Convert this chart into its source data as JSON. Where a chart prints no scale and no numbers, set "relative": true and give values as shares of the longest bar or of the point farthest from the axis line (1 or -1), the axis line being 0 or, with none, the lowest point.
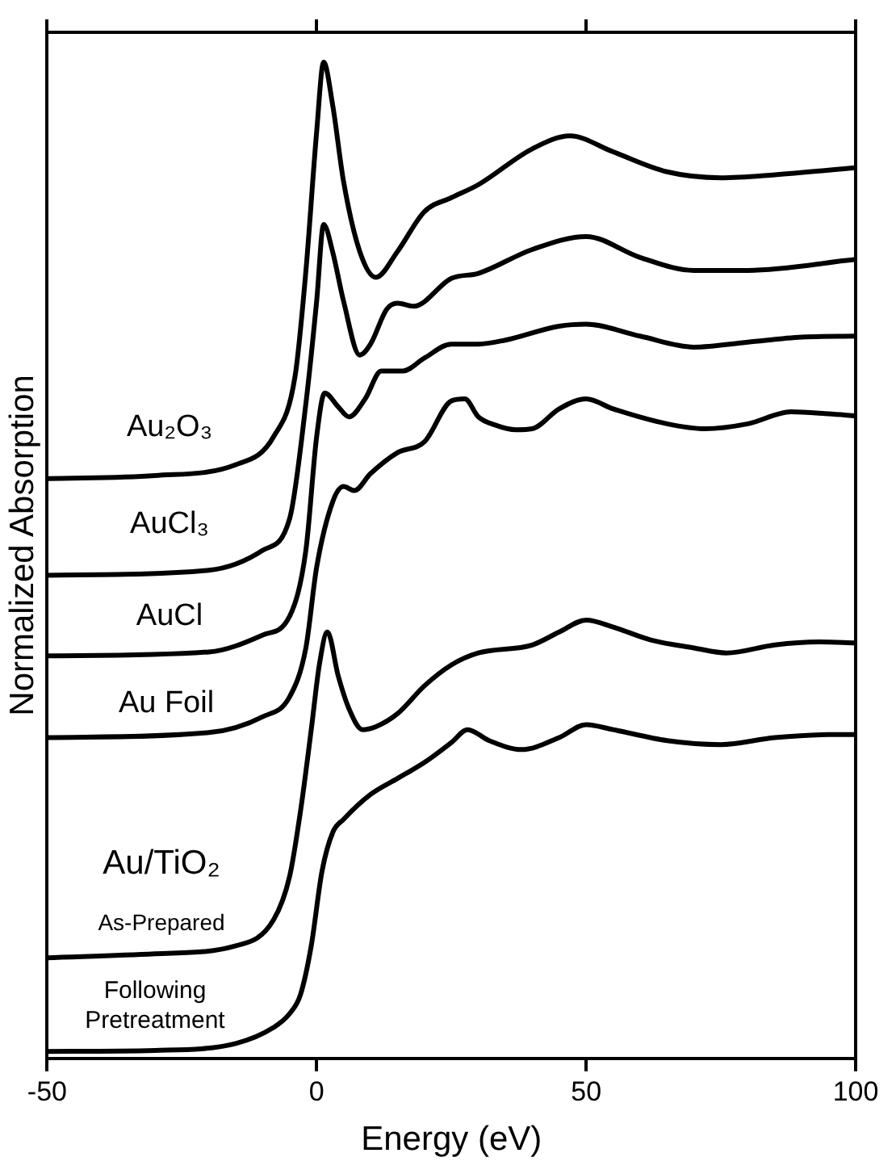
{
  "chart_data": {
    "type": "line",
    "xlabel": "Energy (eV)",
    "ylabel": "Normalized Absorption",
    "relative": true,
    "xlim": [
      -50,
      100
    ],
    "xticks": [
      -50,
      0,
      50,
      100
    ],
    "tick_labels": "x",
    "grid": false,
    "legend": false,
    "marker": "none",
    "line_style": "solid",
    "series": [
      {
        "color": "#000000",
        "x": [
          -50,
          -30,
          -15,
          -8,
          -4,
          -2,
          0,
          1.3,
          3,
          5,
          8,
          11,
          15,
          20,
          25,
          30,
          40,
          47,
          55,
          65,
          75,
          85,
          100
        ],
        "values": [
          0.582,
          0.585,
          0.596,
          0.624,
          0.685,
          0.79,
          0.93,
          1.0,
          0.956,
          0.88,
          0.81,
          0.784,
          0.81,
          0.85,
          0.864,
          0.877,
          0.913,
          0.926,
          0.91,
          0.89,
          0.884,
          0.887,
          0.894
        ]
      },
      {
        "color": "#000000",
        "x": [
          -50,
          -20,
          -10,
          -5,
          -2,
          0,
          1.3,
          3,
          5,
          8,
          10,
          13,
          15,
          18,
          25,
          30,
          40,
          50,
          60,
          70,
          80,
          100
        ],
        "values": [
          0.485,
          0.49,
          0.51,
          0.542,
          0.657,
          0.76,
          0.837,
          0.809,
          0.76,
          0.706,
          0.717,
          0.752,
          0.758,
          0.755,
          0.783,
          0.788,
          0.812,
          0.825,
          0.804,
          0.791,
          0.791,
          0.802
        ]
      },
      {
        "color": "#000000",
        "x": [
          -50,
          -20,
          -10,
          -5,
          -2,
          0,
          1.5,
          4,
          6,
          9,
          12,
          16,
          20,
          25,
          30,
          35,
          45,
          50,
          60,
          70,
          80,
          90,
          100
        ],
        "values": [
          0.404,
          0.408,
          0.425,
          0.444,
          0.51,
          0.624,
          0.668,
          0.654,
          0.644,
          0.662,
          0.69,
          0.69,
          0.703,
          0.717,
          0.717,
          0.721,
          0.735,
          0.737,
          0.725,
          0.714,
          0.719,
          0.724,
          0.725
        ]
      },
      {
        "color": "#000000",
        "x": [
          -50,
          -20,
          -10,
          -5,
          -2,
          0,
          3,
          5,
          7,
          10,
          15,
          20,
          25,
          27.5,
          30,
          33,
          37,
          40,
          45,
          50,
          55,
          65,
          72,
          80,
          88,
          95,
          100
        ],
        "values": [
          0.322,
          0.327,
          0.343,
          0.363,
          0.412,
          0.493,
          0.559,
          0.574,
          0.57,
          0.587,
          0.608,
          0.619,
          0.66,
          0.662,
          0.644,
          0.636,
          0.631,
          0.632,
          0.652,
          0.662,
          0.652,
          0.637,
          0.632,
          0.637,
          0.649,
          0.647,
          0.645
        ]
      },
      {
        "color": "#000000",
        "x": [
          -50,
          -30,
          -15,
          -8,
          -5,
          -3,
          -1,
          0.5,
          2,
          4,
          6,
          8.5,
          11,
          15,
          20,
          25,
          30,
          40,
          45,
          50,
          55,
          62,
          70,
          76,
          85,
          93,
          100
        ],
        "values": [
          0.101,
          0.105,
          0.113,
          0.139,
          0.183,
          0.248,
          0.33,
          0.395,
          0.428,
          0.384,
          0.351,
          0.33,
          0.333,
          0.346,
          0.374,
          0.395,
          0.407,
          0.415,
          0.428,
          0.44,
          0.433,
          0.42,
          0.412,
          0.407,
          0.415,
          0.418,
          0.417
        ]
      },
      {
        "color": "#000000",
        "x": [
          -50,
          -30,
          -15,
          -8,
          -5,
          -3,
          -1,
          1,
          3,
          5,
          10,
          15,
          20,
          25,
          28,
          32,
          38,
          45,
          50,
          55,
          65,
          75,
          85,
          95,
          100
        ],
        "values": [
          0.007,
          0.008,
          0.015,
          0.031,
          0.045,
          0.064,
          0.113,
          0.188,
          0.227,
          0.24,
          0.265,
          0.281,
          0.297,
          0.317,
          0.33,
          0.319,
          0.31,
          0.322,
          0.335,
          0.33,
          0.319,
          0.315,
          0.322,
          0.325,
          0.325
        ]
      }
    ],
    "annotations": [
      "Au₂O₃",
      "AuCl₃",
      "AuCl",
      "Au Foil",
      "Au/TiO₂",
      "As-Prepared",
      "Following Pretreatment"
    ]
  }
}
